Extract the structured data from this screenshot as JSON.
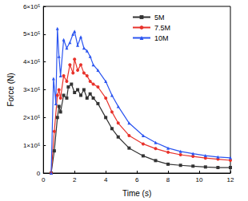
{
  "chart_data": {
    "type": "line",
    "x_label": "Time (s)",
    "y_label": "Force (N)",
    "xlim": [
      0,
      12
    ],
    "xticks": [
      0,
      2,
      4,
      6,
      8,
      10,
      12
    ],
    "ylim": [
      0,
      600000
    ],
    "yticks": [
      0,
      {
        "value": 100000,
        "label": "1×10⁵"
      },
      {
        "value": 200000,
        "label": "2×10⁵"
      },
      {
        "value": 300000,
        "label": "3×10⁵"
      },
      {
        "value": 400000,
        "label": "4×10⁵"
      },
      {
        "value": 500000,
        "label": "5×10⁵"
      },
      {
        "value": 600000,
        "label": "6×10⁵"
      }
    ],
    "grid": false,
    "legend": "top",
    "series": [
      {
        "name": "5M",
        "color": "#333333",
        "marker": "square",
        "line_style": "solid",
        "x": [
          0.5,
          0.7,
          0.9,
          1.0,
          1.1,
          1.3,
          1.5,
          1.6,
          1.8,
          2.0,
          2.2,
          2.4,
          2.6,
          2.8,
          3.0,
          3.2,
          3.5,
          4.0,
          4.4,
          4.8,
          5.5,
          6.4,
          7.2,
          8.0,
          8.8,
          9.6,
          10.4,
          11.2,
          12.0
        ],
        "values": [
          0,
          80000,
          200000,
          240000,
          220000,
          280000,
          270000,
          310000,
          320000,
          290000,
          300000,
          280000,
          300000,
          270000,
          285000,
          270000,
          250000,
          200000,
          160000,
          130000,
          90000,
          62000,
          45000,
          32000,
          28000,
          25000,
          22000,
          20000,
          20000
        ]
      },
      {
        "name": "7.5M",
        "color": "#e8322b",
        "marker": "circle",
        "line_style": "solid",
        "x": [
          0.5,
          0.7,
          0.9,
          1.0,
          1.1,
          1.3,
          1.5,
          1.7,
          1.9,
          2.0,
          2.2,
          2.4,
          2.6,
          2.8,
          3.0,
          3.2,
          3.5,
          4.0,
          4.4,
          4.8,
          5.5,
          6.4,
          7.2,
          8.0,
          8.8,
          9.6,
          10.4,
          11.2,
          12.0
        ],
        "values": [
          0,
          150000,
          280000,
          300000,
          270000,
          350000,
          330000,
          390000,
          360000,
          410000,
          370000,
          390000,
          360000,
          350000,
          330000,
          320000,
          310000,
          270000,
          220000,
          180000,
          135000,
          105000,
          88000,
          75000,
          66000,
          60000,
          54000,
          50000,
          46000
        ]
      },
      {
        "name": "10M",
        "color": "#2b55f0",
        "marker": "triangle",
        "line_style": "solid",
        "x": [
          0.5,
          0.65,
          0.8,
          0.9,
          1.0,
          1.1,
          1.3,
          1.5,
          1.7,
          1.9,
          2.0,
          2.2,
          2.4,
          2.6,
          2.8,
          3.0,
          3.2,
          3.5,
          4.0,
          4.4,
          4.8,
          5.5,
          6.4,
          7.2,
          8.0,
          8.8,
          9.6,
          10.4,
          11.2,
          12.0
        ],
        "values": [
          0,
          340000,
          250000,
          520000,
          420000,
          350000,
          480000,
          450000,
          470000,
          500000,
          510000,
          460000,
          490000,
          450000,
          440000,
          420000,
          390000,
          370000,
          330000,
          280000,
          240000,
          180000,
          135000,
          110000,
          90000,
          78000,
          70000,
          63000,
          58000,
          55000
        ]
      }
    ]
  }
}
